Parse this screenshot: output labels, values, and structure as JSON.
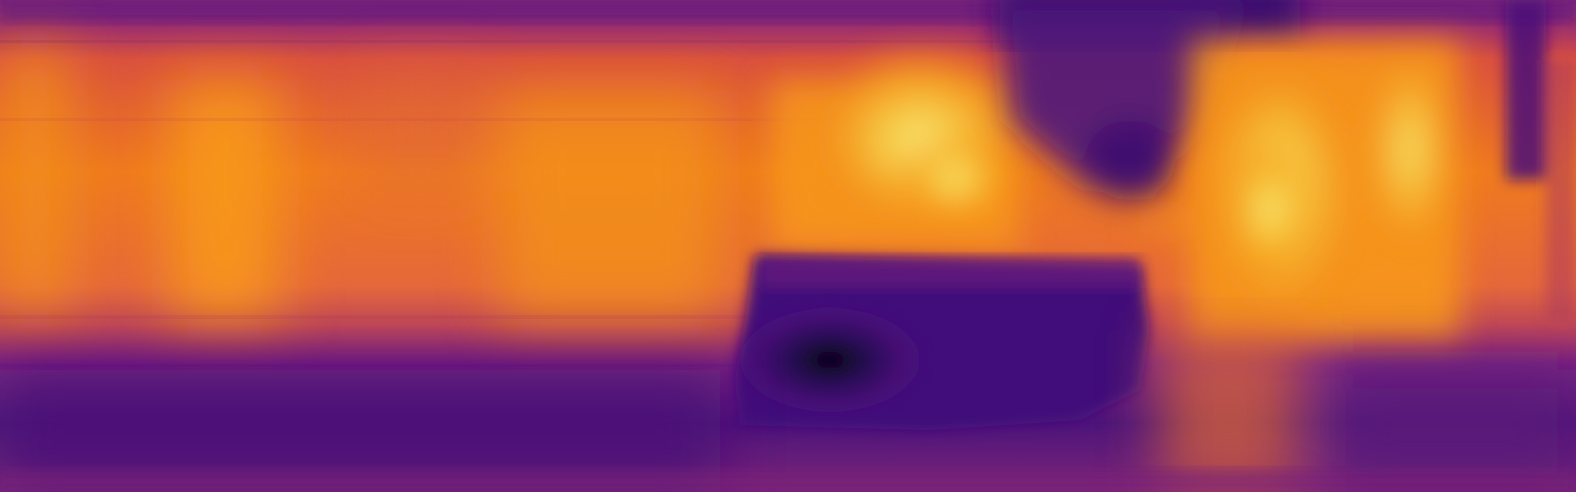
{
  "image": {
    "kind": "depth-heatmap",
    "colormap": "inferno",
    "palette": {
      "darkest": "#07040f",
      "deep_purple": "#3b0f6f",
      "purple": "#5c1a7a",
      "magenta": "#8a2a73",
      "red_magenta": "#b13a5b",
      "orange_red": "#d9503f",
      "orange": "#ef7a1f",
      "bright_orange": "#f89a16",
      "yellow": "#f6d43c",
      "pale_yellow": "#fcf5a0"
    },
    "regions": [
      "top-dark-band",
      "upper-orange-band",
      "left-warm-region",
      "center-bright-hotspot",
      "right-bright-hotspot",
      "center-dark-block",
      "bottom-purple-band",
      "right-vertical-dark-strip"
    ]
  }
}
